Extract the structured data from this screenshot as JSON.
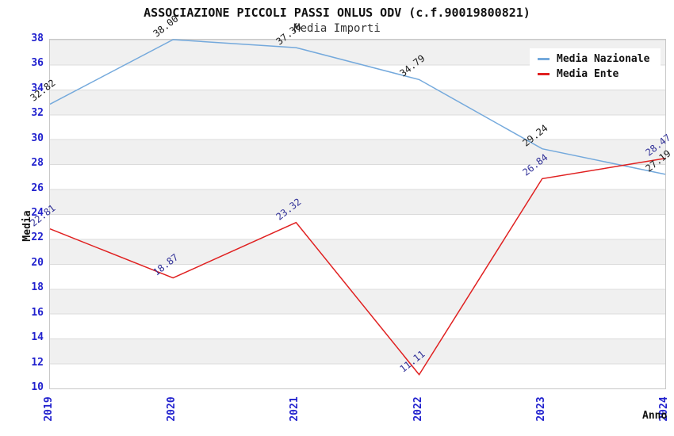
{
  "chart_data": {
    "type": "line",
    "title": "ASSOCIAZIONE PICCOLI PASSI ONLUS ODV (c.f.90019800821)",
    "subtitle": "Media Importi",
    "xlabel": "Anno",
    "ylabel": "Media",
    "x": [
      2019,
      2020,
      2021,
      2022,
      2023,
      2024
    ],
    "x_tick_labels": [
      "2019",
      "2020",
      "2021",
      "2022",
      "2023",
      "2024"
    ],
    "y_ticks": [
      38,
      36,
      34,
      32,
      30,
      28,
      26,
      24,
      22,
      20,
      18,
      16,
      14,
      12,
      10
    ],
    "ylim": [
      10,
      38
    ],
    "grid": "horizontal-bands",
    "legend_position": "top-right",
    "series": [
      {
        "name": "Media Nazionale",
        "color": "#74a9dc",
        "label_color": "#1a1a1a",
        "values": [
          32.82,
          38.0,
          37.36,
          34.79,
          29.24,
          27.19
        ],
        "point_labels": [
          "32.82",
          "38.00",
          "37.36",
          "34.79",
          "29.24",
          "27.19"
        ]
      },
      {
        "name": "Media Ente",
        "color": "#e02020",
        "label_color": "#333399",
        "values": [
          22.81,
          18.87,
          23.32,
          11.11,
          26.84,
          28.47
        ],
        "point_labels": [
          "22.81",
          "18.87",
          "23.32",
          "11.11",
          "26.84",
          "28.47"
        ]
      }
    ]
  },
  "colors": {
    "tick_label_blue": "#2222ce",
    "band_gray": "#f0f0f0",
    "grid_line": "#dbdbdb",
    "plot_border": "#c8c8c8",
    "background": "#ffffff",
    "title_text": "#111111",
    "subtitle_text": "#333333"
  }
}
